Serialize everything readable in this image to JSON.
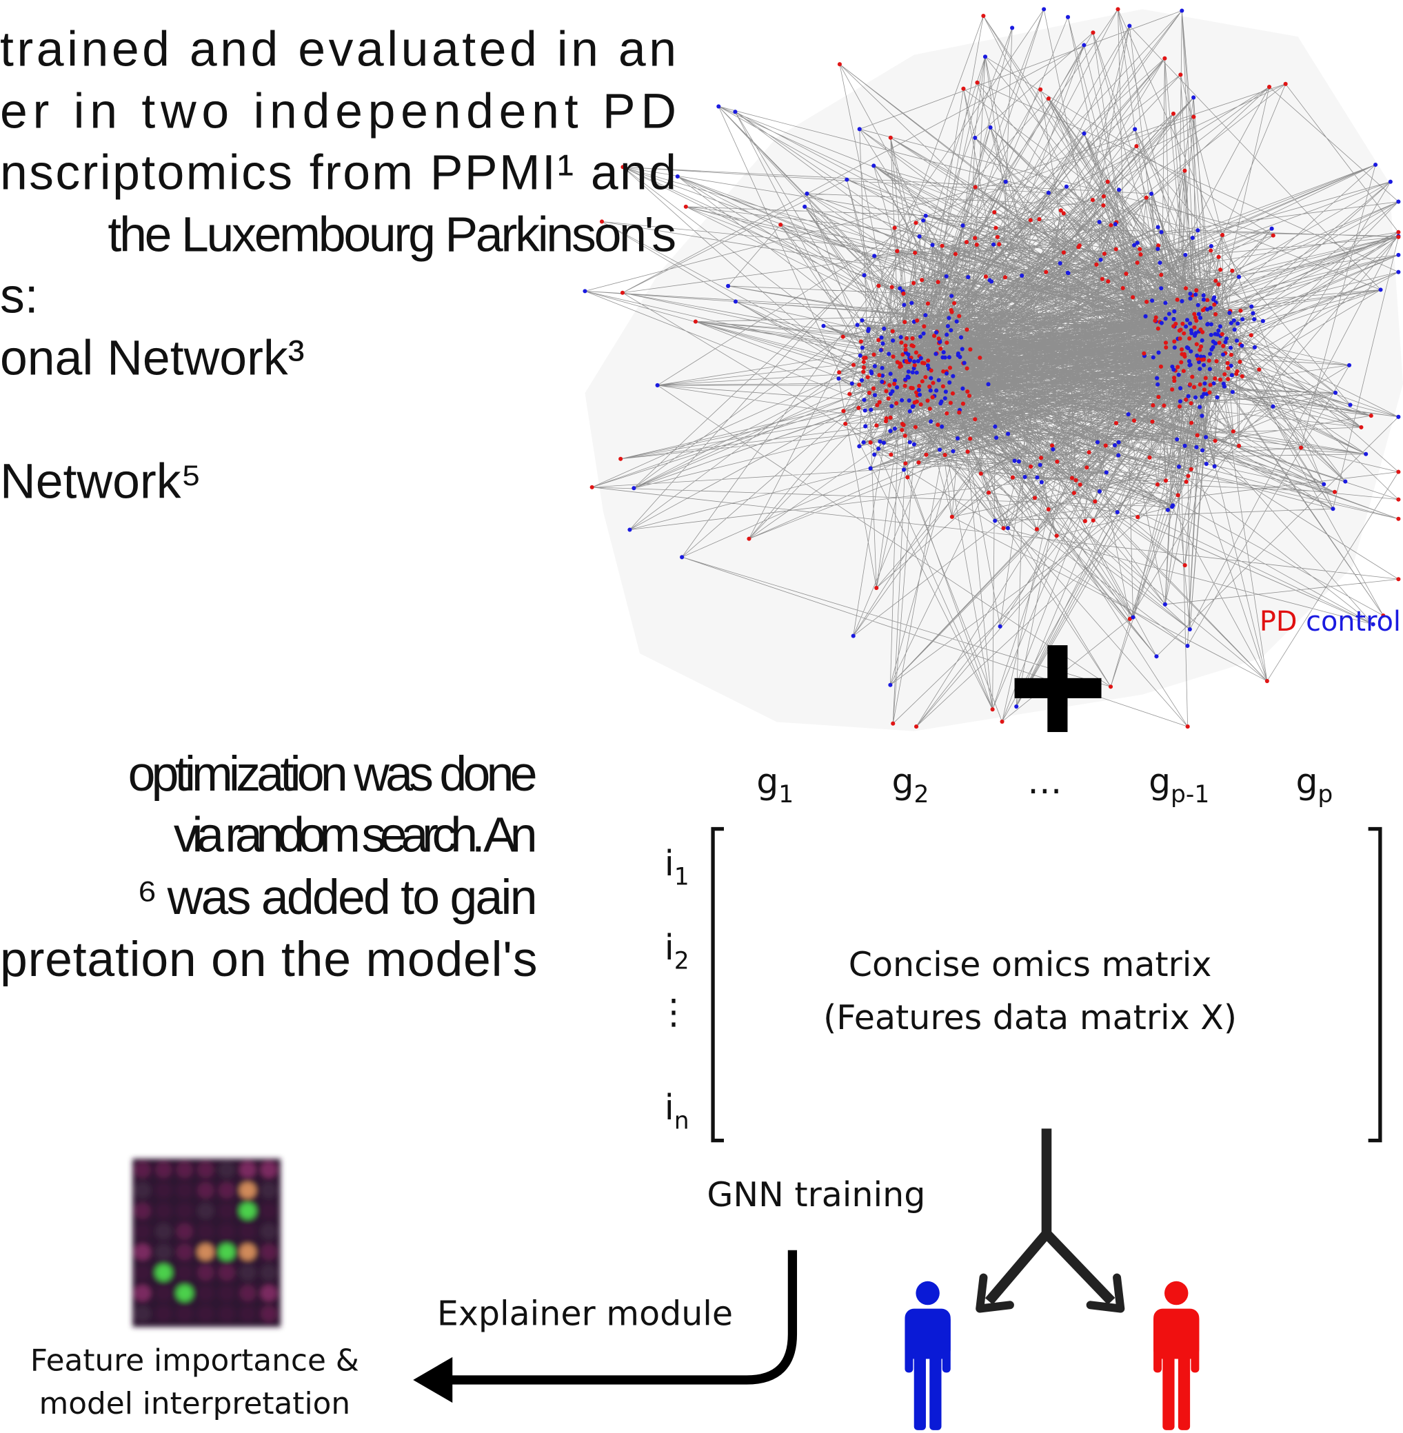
{
  "text": {
    "paragraph_1": [
      "trained and evaluated in an",
      "er in two independent PD",
      "nscriptomics from PPMI¹ and",
      "the Luxembourg Parkinson's",
      "s:",
      "onal Network³",
      "Network⁵"
    ],
    "paragraph_2": [
      "optimization was done",
      "via random search. An",
      "⁶ was added to gain",
      "pretation on the model's"
    ]
  },
  "figure": {
    "legend": {
      "case": "PD",
      "control": "control"
    },
    "columns": [
      {
        "base": "g",
        "sub": "1"
      },
      {
        "base": "g",
        "sub": "2"
      },
      {
        "base": "…"
      },
      {
        "base": "g",
        "sub": "p-1"
      },
      {
        "base": "g",
        "sub": "p"
      }
    ],
    "rows": [
      {
        "base": "i",
        "sub": "1"
      },
      {
        "base": "i",
        "sub": "2"
      },
      {
        "base": "⋮"
      },
      {
        "base": "i",
        "sub": "n"
      }
    ],
    "matrix_label": [
      "Concise omics matrix",
      "(Features data matrix X)"
    ],
    "gnn_training": "GNN training",
    "explainer": "Explainer module",
    "feature_caption": [
      "Feature importance &",
      "model interpretation"
    ]
  }
}
